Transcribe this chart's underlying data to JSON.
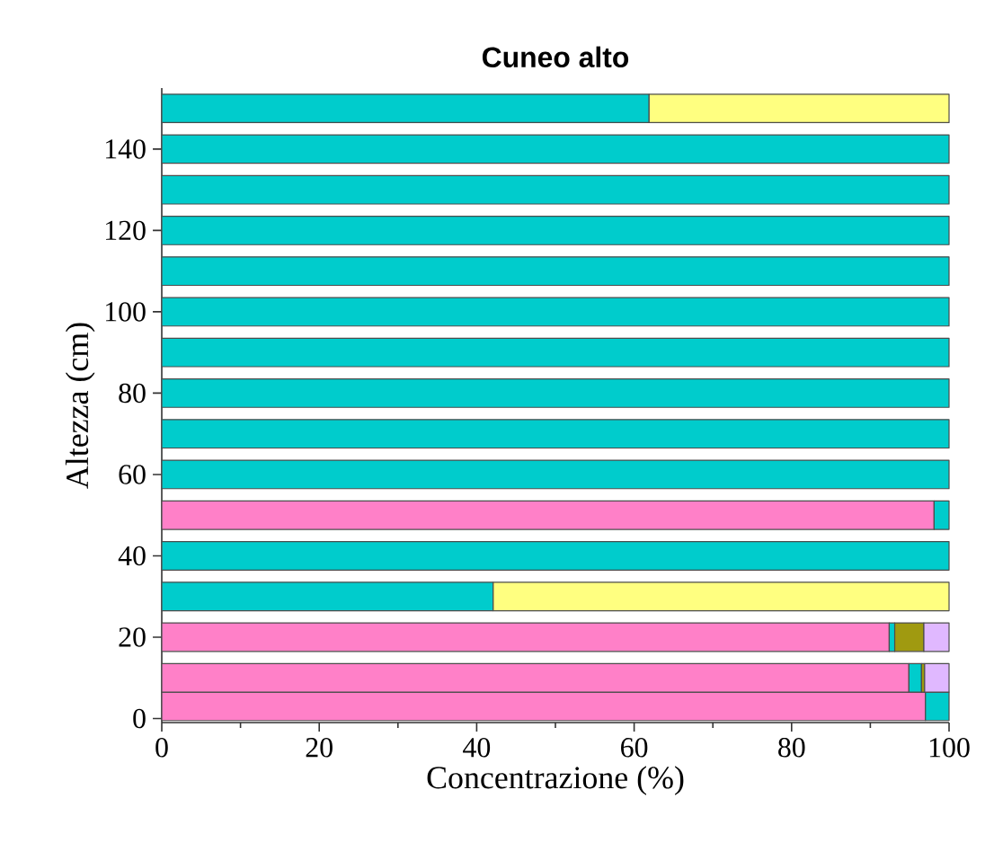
{
  "chart_data": {
    "type": "bar",
    "orientation": "horizontal",
    "stacked": true,
    "title": "Cuneo alto",
    "xlabel": "Concentrazione (%)",
    "ylabel": "Altezza (cm)",
    "x": [
      3,
      10,
      20,
      30,
      40,
      50,
      60,
      70,
      80,
      90,
      100,
      110,
      120,
      130,
      140,
      150
    ],
    "xlim": [
      0,
      100
    ],
    "xticks": [
      0,
      20,
      40,
      60,
      80,
      100
    ],
    "ylim": [
      -1,
      155
    ],
    "yticks": [
      0,
      20,
      40,
      60,
      80,
      100,
      120,
      140
    ],
    "grid": false,
    "series": [
      {
        "color": "#ff80c8",
        "values": [
          97.0,
          94.9,
          92.4,
          null,
          null,
          98.1,
          null,
          null,
          null,
          null,
          null,
          null,
          null,
          null,
          null,
          null
        ]
      },
      {
        "color": "#00cccc",
        "values": [
          3.0,
          1.6,
          0.7,
          42.1,
          100,
          1.9,
          100,
          100,
          100,
          100,
          100,
          100,
          100,
          100,
          100,
          61.9
        ]
      },
      {
        "color": "#ffff80",
        "values": [
          null,
          null,
          null,
          57.9,
          null,
          null,
          null,
          null,
          null,
          null,
          null,
          null,
          null,
          null,
          null,
          38.1
        ]
      },
      {
        "color": "#a09a10",
        "values": [
          null,
          0.4,
          3.7,
          null,
          null,
          null,
          null,
          null,
          null,
          null,
          null,
          null,
          null,
          null,
          null,
          null
        ]
      },
      {
        "color": "#e0b8ff",
        "values": [
          null,
          3.1,
          3.2,
          null,
          null,
          null,
          null,
          null,
          null,
          null,
          null,
          null,
          null,
          null,
          null,
          null
        ]
      }
    ]
  }
}
